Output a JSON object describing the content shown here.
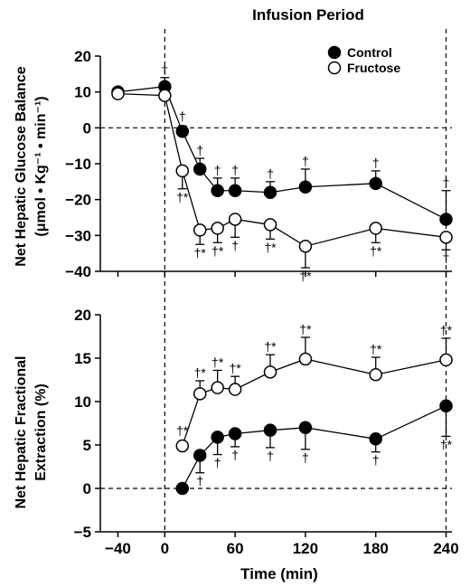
{
  "header": {
    "title": "Infusion Period"
  },
  "legend": {
    "items": [
      "Control",
      "Fructose"
    ]
  },
  "chart_data": [
    {
      "type": "line",
      "ylabel": "Net Hepatic Glucose Balance (μmol • Kg⁻¹ • min⁻¹)",
      "ylabel_lines": [
        "Net Hepatic Glucose Balance",
        "(μmol • Kg⁻¹ • min⁻¹)"
      ],
      "ylim": [
        -40,
        20
      ],
      "yticks": [
        -40,
        -30,
        -20,
        -10,
        0,
        10,
        20
      ],
      "series": [
        {
          "name": "Control",
          "marker": "filled-circle",
          "x": [
            -40,
            0,
            15,
            30,
            45,
            60,
            90,
            120,
            180,
            240
          ],
          "y": [
            10,
            11.5,
            -1,
            -11.5,
            -17.5,
            -17.5,
            -18,
            -16.5,
            -15.5,
            -25.5
          ],
          "err": [
            0,
            2.5,
            1.5,
            3,
            3.5,
            3.5,
            3,
            5,
            3.5,
            8
          ],
          "err_dir": [
            1,
            1,
            1,
            1,
            1,
            1,
            1,
            1,
            1,
            1
          ],
          "annot": [
            "",
            "†",
            "†",
            "†",
            "†",
            "†",
            "†",
            "†",
            "†",
            "†"
          ]
        },
        {
          "name": "Fructose",
          "marker": "open-circle",
          "x": [
            -40,
            0,
            15,
            30,
            45,
            60,
            90,
            120,
            180,
            240
          ],
          "y": [
            9.5,
            9,
            -12,
            -28.5,
            -28,
            -25.5,
            -27,
            -33,
            -28,
            -30.5
          ],
          "err": [
            0,
            0,
            5,
            4,
            4,
            5,
            4,
            6,
            4,
            3.5
          ],
          "err_dir": [
            -1,
            -1,
            -1,
            -1,
            -1,
            -1,
            -1,
            -1,
            -1,
            -1
          ],
          "annot": [
            "",
            "",
            "†*",
            "†*",
            "†*",
            "†",
            "†*",
            "†*",
            "†*",
            "†"
          ]
        }
      ]
    },
    {
      "type": "line",
      "xlabel": "Time (min)",
      "ylabel": "Net Hepatic Fractional Extraction (%)",
      "ylabel_lines": [
        "Net Hepatic Fractional",
        "Extraction (%)"
      ],
      "ylim": [
        -5,
        20
      ],
      "yticks": [
        -5,
        0,
        5,
        10,
        15,
        20
      ],
      "xticks": [
        -40,
        0,
        60,
        120,
        180,
        240
      ],
      "xtick_labels": [
        "−40",
        "0",
        "60",
        "120",
        "180",
        "240"
      ],
      "xlim": [
        -55,
        245
      ],
      "series": [
        {
          "name": "Control",
          "marker": "filled-circle",
          "x": [
            15,
            30,
            45,
            60,
            90,
            120,
            180,
            240
          ],
          "y": [
            0,
            3.8,
            5.9,
            6.3,
            6.7,
            7,
            5.7,
            9.5
          ],
          "err": [
            0,
            2,
            2,
            1.5,
            2,
            2.5,
            1.5,
            3.5
          ],
          "err_dir": [
            -1,
            -1,
            -1,
            -1,
            -1,
            -1,
            -1,
            -1
          ],
          "annot": [
            "",
            "†",
            "†",
            "†",
            "†",
            "†",
            "†",
            "†*"
          ]
        },
        {
          "name": "Fructose",
          "marker": "open-circle",
          "x": [
            15,
            30,
            45,
            60,
            90,
            120,
            180,
            240
          ],
          "y": [
            4.9,
            10.9,
            11.6,
            11.4,
            13.4,
            14.9,
            13.1,
            14.8
          ],
          "err": [
            0,
            1.5,
            2,
            1.5,
            2,
            2.5,
            2,
            2.5
          ],
          "err_dir": [
            1,
            1,
            1,
            1,
            1,
            1,
            1,
            1
          ],
          "annot": [
            "†*",
            "†*",
            "†*",
            "†*",
            "†*",
            "†*",
            "†*",
            "†*"
          ]
        }
      ]
    }
  ]
}
